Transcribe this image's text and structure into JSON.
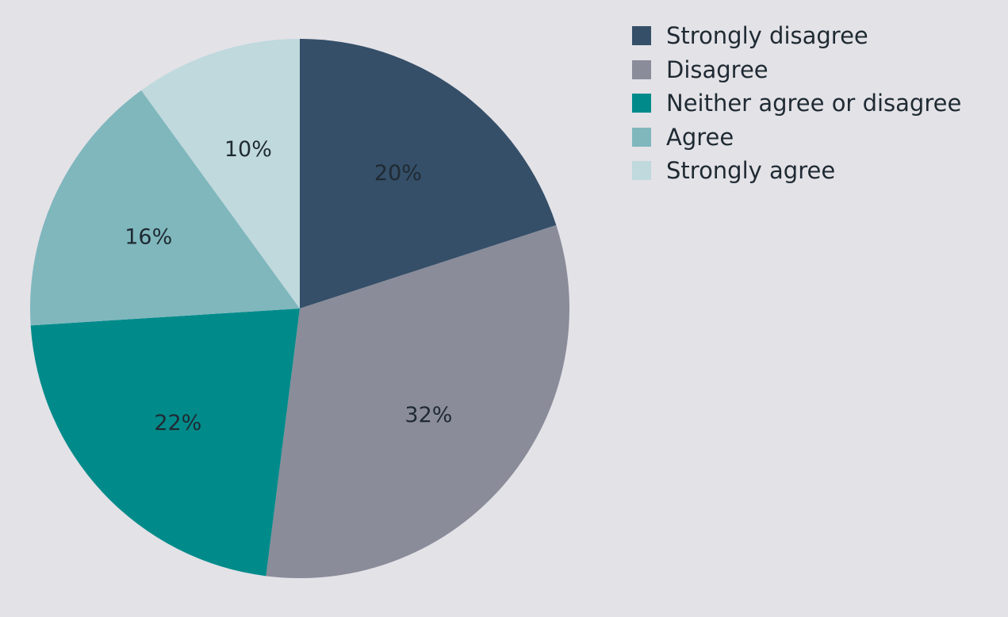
{
  "chart_data": {
    "type": "pie",
    "title": "",
    "legend_position": "top-right",
    "start_angle_deg": 0,
    "direction": "clockwise",
    "slices": [
      {
        "label": "Strongly disagree",
        "value": 20,
        "display": "20%",
        "color": "#354f68"
      },
      {
        "label": "Disagree",
        "value": 32,
        "display": "32%",
        "color": "#8a8c9a"
      },
      {
        "label": "Neither agree or disagree",
        "value": 22,
        "display": "22%",
        "color": "#008b8a"
      },
      {
        "label": "Agree",
        "value": 16,
        "display": "16%",
        "color": "#7fb7bd"
      },
      {
        "label": "Strongly agree",
        "value": 10,
        "display": "10%",
        "color": "#bfd9dd"
      }
    ]
  }
}
